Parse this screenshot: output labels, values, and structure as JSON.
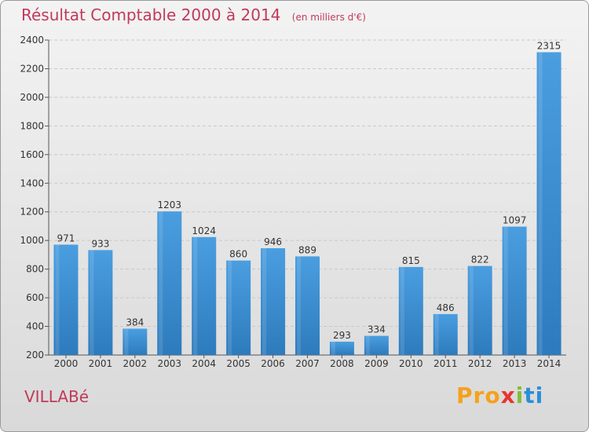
{
  "chart_data": {
    "type": "bar",
    "title": "Résultat Comptable 2000 à 2014",
    "subtitle": "(en milliers d'€)",
    "categories": [
      "2000",
      "2001",
      "2002",
      "2003",
      "2004",
      "2005",
      "2006",
      "2007",
      "2008",
      "2009",
      "2010",
      "2011",
      "2012",
      "2013",
      "2014"
    ],
    "values": [
      971,
      933,
      384,
      1203,
      1024,
      860,
      946,
      889,
      293,
      334,
      815,
      486,
      822,
      1097,
      2315
    ],
    "ylim": [
      200,
      2400
    ],
    "yticks": [
      200,
      400,
      600,
      800,
      1000,
      1200,
      1400,
      1600,
      1800,
      2000,
      2200,
      2400
    ],
    "xlabel": "",
    "ylabel": "",
    "grid": true,
    "colors": {
      "bar": "#4a9ee0",
      "bar_dark": "#2d7bbd",
      "title": "#c03a5a"
    }
  },
  "place_name": "VILLABé",
  "logo": {
    "p1": "Pro",
    "p2": "x",
    "p3": "i",
    "p4": "ti"
  }
}
